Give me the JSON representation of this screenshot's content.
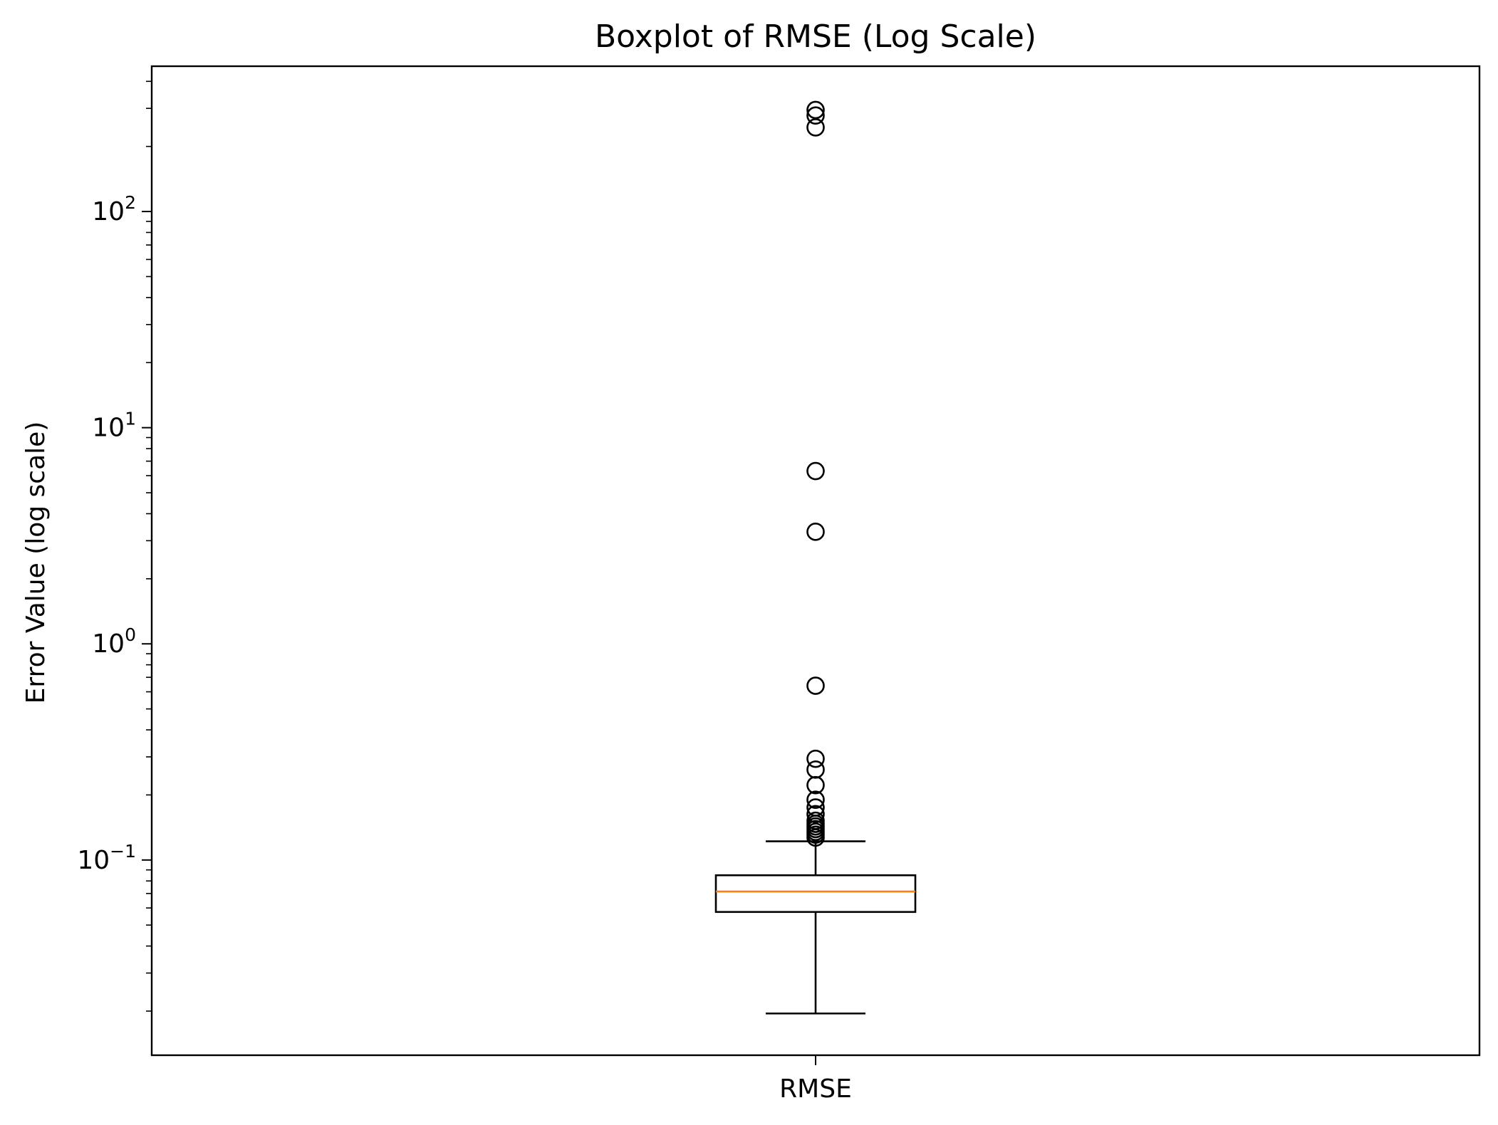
{
  "chart_data": {
    "type": "box",
    "title": "Boxplot of RMSE (Log Scale)",
    "xlabel": "",
    "ylabel": "Error Value (log scale)",
    "yscale": "log",
    "ylim": [
      0.0125,
      470
    ],
    "yticks": [
      {
        "value": 0.1,
        "base": "10",
        "exp": "−1"
      },
      {
        "value": 1,
        "base": "10",
        "exp": "0"
      },
      {
        "value": 10,
        "base": "10",
        "exp": "1"
      },
      {
        "value": 100,
        "base": "10",
        "exp": "2"
      }
    ],
    "categories": [
      "RMSE"
    ],
    "boxes": [
      {
        "category": "RMSE",
        "whisker_low": 0.0195,
        "q1": 0.0575,
        "median": 0.0715,
        "q3": 0.085,
        "whisker_high": 0.122,
        "outliers": [
          0.127,
          0.131,
          0.135,
          0.139,
          0.143,
          0.147,
          0.152,
          0.163,
          0.175,
          0.19,
          0.222,
          0.262,
          0.294,
          0.64,
          3.3,
          6.3,
          245,
          278,
          295
        ]
      }
    ],
    "colors": {
      "box": "#000000",
      "median": "#ff7f0e",
      "outlier": "#000000"
    },
    "grid": false,
    "legend": "none"
  }
}
